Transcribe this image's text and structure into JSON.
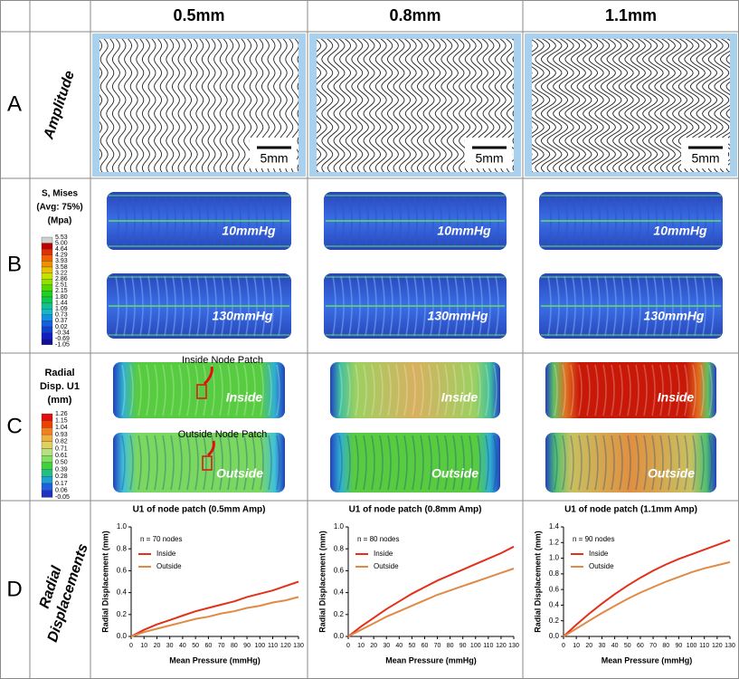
{
  "header": {
    "columns": [
      "0.5mm",
      "0.8mm",
      "1.1mm"
    ]
  },
  "rows": {
    "letters": [
      "A",
      "B",
      "C",
      "D"
    ]
  },
  "row_a": {
    "label": "Amplitude",
    "scale_bars": [
      "5mm",
      "5mm",
      "5mm"
    ]
  },
  "row_b": {
    "legend_title": [
      "S, Mises",
      "(Avg: 75%)",
      "(Mpa)"
    ],
    "legend_labels": [
      "5.53",
      "5.00",
      "4.64",
      "4.29",
      "3.93",
      "3.58",
      "3.22",
      "2.86",
      "2.51",
      "2.15",
      "1.80",
      "1.44",
      "1.09",
      "0.73",
      "0.37",
      "0.02",
      "-0.34",
      "-0.69",
      "-1.05"
    ],
    "panels": [
      {
        "top": "10mmHg",
        "bottom": "130mmHg"
      },
      {
        "top": "10mmHg",
        "bottom": "130mmHg"
      },
      {
        "top": "10mmHg",
        "bottom": "130mmHg"
      }
    ]
  },
  "row_c": {
    "legend_title": [
      "Radial",
      "Disp. U1",
      "(mm)"
    ],
    "legend_labels": [
      "1.26",
      "1.15",
      "1.04",
      "0.93",
      "0.82",
      "0.71",
      "0.61",
      "0.50",
      "0.39",
      "0.28",
      "0.17",
      "0.06",
      "-0.05"
    ],
    "annotations": [
      "Inside Node Patch",
      "Outside Node Patch"
    ],
    "panels": [
      {
        "inside": "Inside",
        "outside": "Outside"
      },
      {
        "inside": "Inside",
        "outside": "Outside"
      },
      {
        "inside": "Inside",
        "outside": "Outside"
      }
    ]
  },
  "row_d": {
    "label": [
      "Radial",
      "Displacements"
    ]
  },
  "chart_data": [
    {
      "type": "line",
      "title": "U1 of node patch (0.5mm Amp)",
      "annotation": "n = 70 nodes",
      "x_label": "Mean Pressure (mmHg)",
      "y_label": "Radial Displacement (mm)",
      "x": [
        0,
        10,
        20,
        30,
        40,
        50,
        60,
        70,
        80,
        90,
        100,
        110,
        120,
        130
      ],
      "series": [
        {
          "name": "Inside",
          "color": "#e2301a",
          "values": [
            0,
            0.06,
            0.11,
            0.15,
            0.19,
            0.23,
            0.26,
            0.29,
            0.32,
            0.36,
            0.39,
            0.42,
            0.46,
            0.5
          ]
        },
        {
          "name": "Outside",
          "color": "#e08a45",
          "values": [
            0,
            0.04,
            0.07,
            0.1,
            0.13,
            0.16,
            0.18,
            0.21,
            0.23,
            0.26,
            0.28,
            0.31,
            0.33,
            0.36
          ]
        }
      ],
      "xlim": [
        0,
        130
      ],
      "xticks": [
        0,
        10,
        20,
        30,
        40,
        50,
        60,
        70,
        80,
        90,
        100,
        110,
        120,
        130
      ],
      "ylim": [
        0,
        1.0
      ],
      "yticks": [
        {
          "value": 0,
          "label": "0.0"
        },
        {
          "value": 0.2,
          "label": "0.2"
        },
        {
          "value": 0.4,
          "label": "0.4"
        },
        {
          "value": 0.6,
          "label": "0.6"
        },
        {
          "value": 0.8,
          "label": "0.8"
        },
        {
          "value": 1.0,
          "label": "1.0"
        }
      ]
    },
    {
      "type": "line",
      "title": "U1 of node patch (0.8mm Amp)",
      "annotation": "n = 80 nodes",
      "x_label": "Mean Pressure (mmHg)",
      "y_label": "Radial Displacement (mm)",
      "x": [
        0,
        10,
        20,
        30,
        40,
        50,
        60,
        70,
        80,
        90,
        100,
        110,
        120,
        130
      ],
      "series": [
        {
          "name": "Inside",
          "color": "#e2301a",
          "values": [
            0,
            0.09,
            0.17,
            0.25,
            0.32,
            0.39,
            0.45,
            0.51,
            0.56,
            0.61,
            0.66,
            0.71,
            0.76,
            0.82
          ]
        },
        {
          "name": "Outside",
          "color": "#e08a45",
          "values": [
            0,
            0.06,
            0.12,
            0.18,
            0.23,
            0.28,
            0.33,
            0.38,
            0.42,
            0.46,
            0.5,
            0.54,
            0.58,
            0.62
          ]
        }
      ],
      "xlim": [
        0,
        130
      ],
      "xticks": [
        0,
        10,
        20,
        30,
        40,
        50,
        60,
        70,
        80,
        90,
        100,
        110,
        120,
        130
      ],
      "ylim": [
        0,
        1.0
      ],
      "yticks": [
        {
          "value": 0,
          "label": "0.0"
        },
        {
          "value": 0.2,
          "label": "0.2"
        },
        {
          "value": 0.4,
          "label": "0.4"
        },
        {
          "value": 0.6,
          "label": "0.6"
        },
        {
          "value": 0.8,
          "label": "0.8"
        },
        {
          "value": 1.0,
          "label": "1.0"
        }
      ]
    },
    {
      "type": "line",
      "title": "U1 of node patch (1.1mm Amp)",
      "annotation": "n = 90 nodes",
      "x_label": "Mean Pressure (mmHg)",
      "y_label": "Radial Displacement (mm)",
      "x": [
        0,
        10,
        20,
        30,
        40,
        50,
        60,
        70,
        80,
        90,
        100,
        110,
        120,
        130
      ],
      "series": [
        {
          "name": "Inside",
          "color": "#e2301a",
          "values": [
            0,
            0.15,
            0.29,
            0.42,
            0.54,
            0.65,
            0.75,
            0.84,
            0.92,
            0.99,
            1.05,
            1.11,
            1.17,
            1.23
          ]
        },
        {
          "name": "Outside",
          "color": "#e08a45",
          "values": [
            0,
            0.1,
            0.2,
            0.3,
            0.39,
            0.48,
            0.56,
            0.63,
            0.7,
            0.76,
            0.82,
            0.87,
            0.91,
            0.95
          ]
        }
      ],
      "xlim": [
        0,
        130
      ],
      "xticks": [
        0,
        10,
        20,
        30,
        40,
        50,
        60,
        70,
        80,
        90,
        100,
        110,
        120,
        130
      ],
      "ylim": [
        0,
        1.4
      ],
      "yticks": [
        {
          "value": 0,
          "label": "0.0"
        },
        {
          "value": 0.2,
          "label": "0.2"
        },
        {
          "value": 0.4,
          "label": "0.4"
        },
        {
          "value": 0.6,
          "label": "0.6"
        },
        {
          "value": 0.8,
          "label": "0.8"
        },
        {
          "value": 1.0,
          "label": "1.0"
        },
        {
          "value": 1.2,
          "label": "1.2"
        },
        {
          "value": 1.4,
          "label": "1.4"
        }
      ]
    }
  ]
}
